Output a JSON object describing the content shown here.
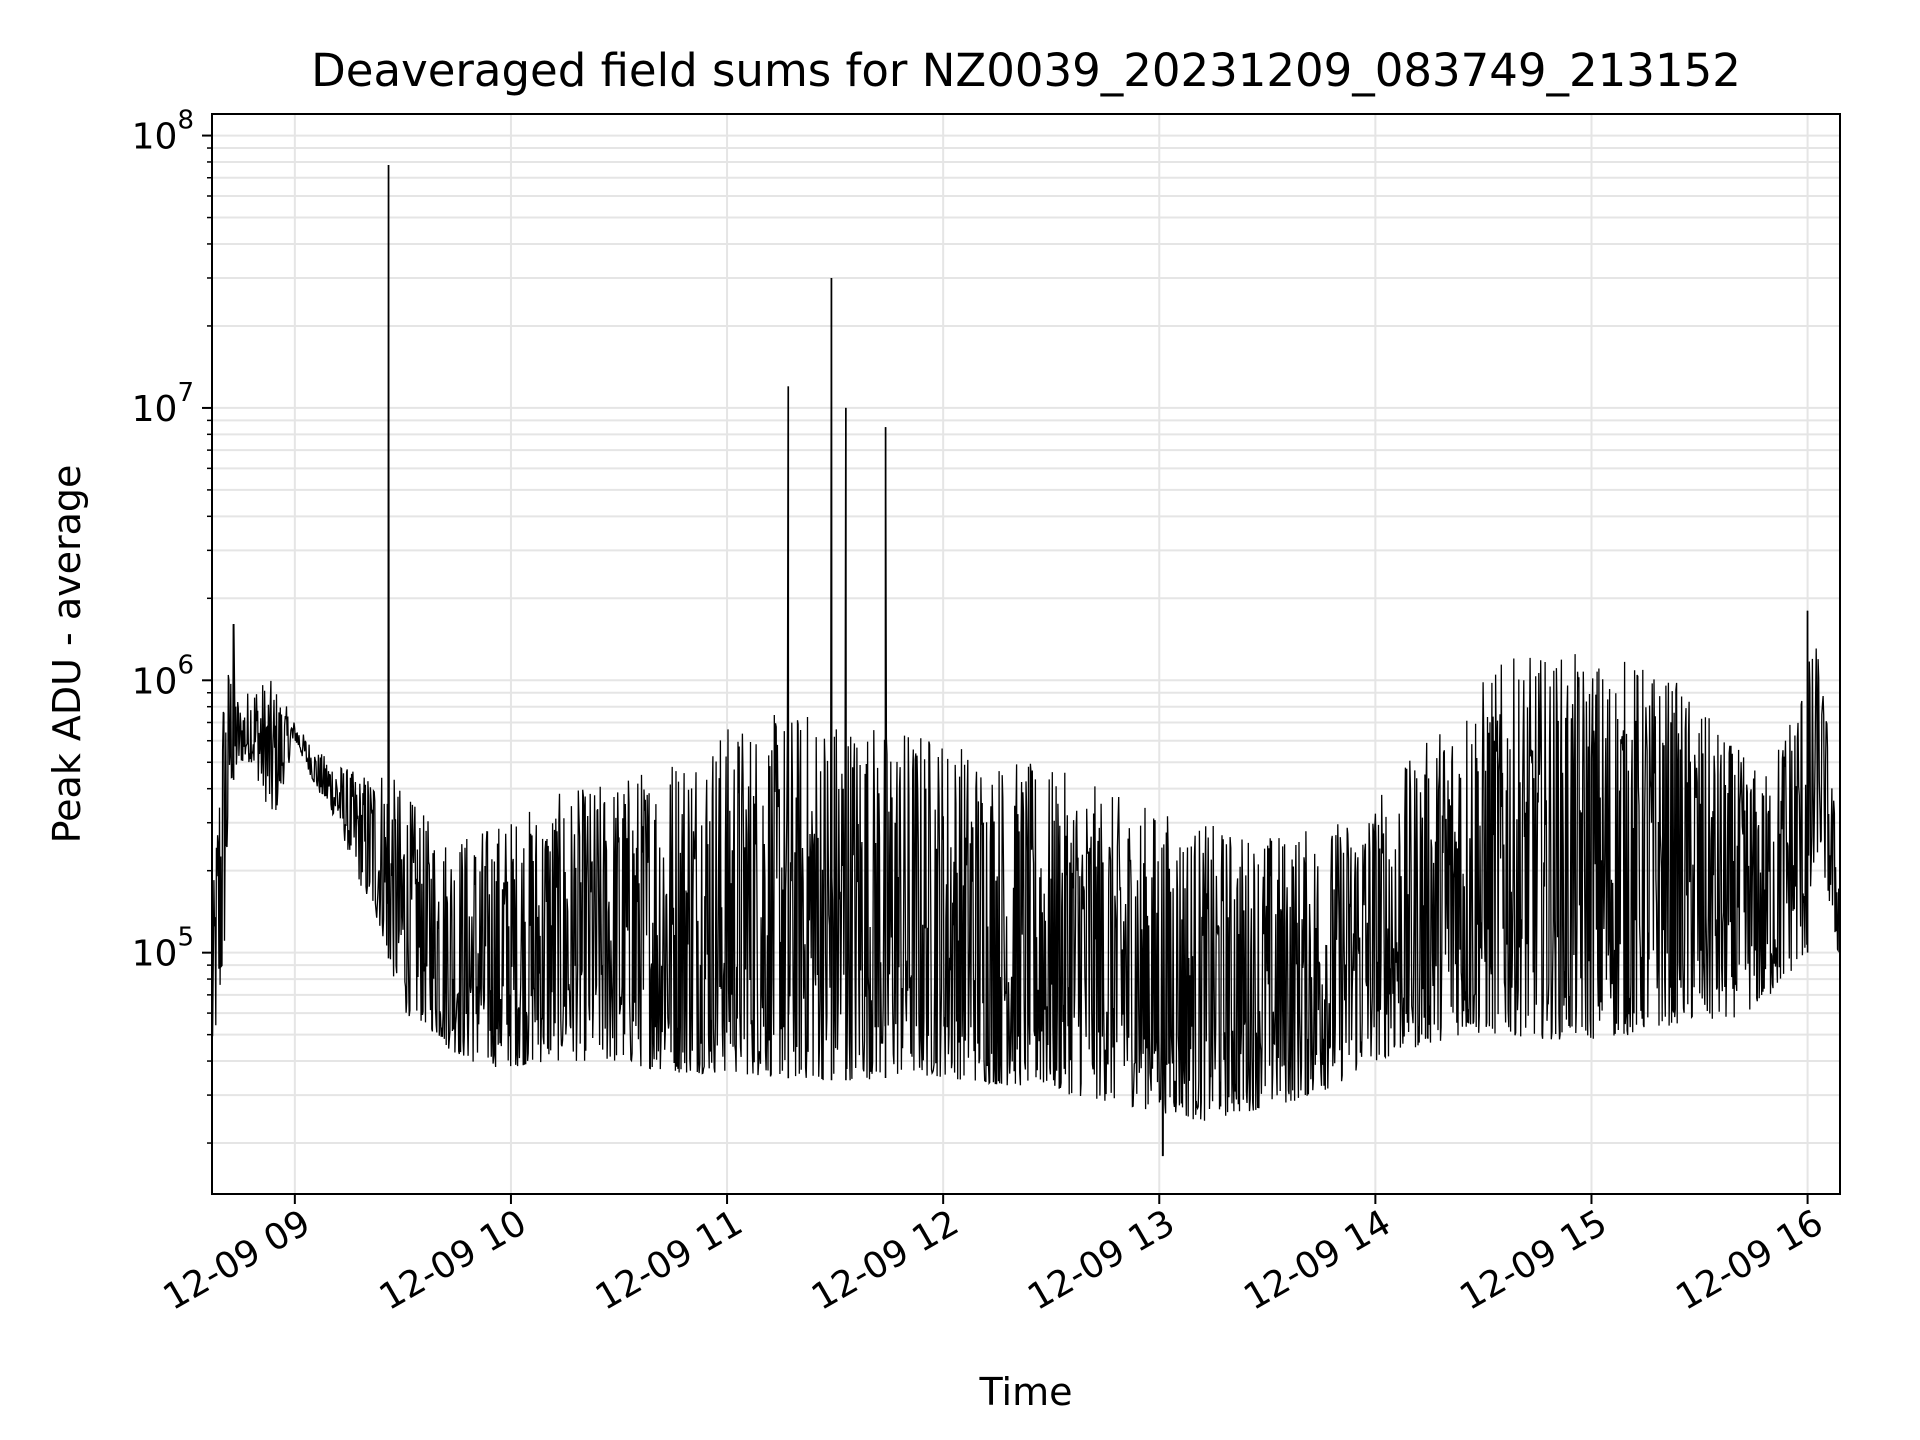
{
  "chart_data": {
    "type": "line",
    "title": "Deaveraged field sums for NZ0039_20231209_083749_213152",
    "xlabel": "Time",
    "ylabel": "Peak ADU - average",
    "yscale": "log",
    "ylim": [
      13000,
      120000000
    ],
    "xlim": [
      "2023-12-09 08:37",
      "2023-12-09 16:09"
    ],
    "x_ticks": [
      "12-09 09",
      "12-09 10",
      "12-09 11",
      "12-09 12",
      "12-09 13",
      "12-09 14",
      "12-09 15",
      "12-09 16"
    ],
    "y_ticks": [
      {
        "base": "10",
        "exp": "5",
        "value": 100000
      },
      {
        "base": "10",
        "exp": "6",
        "value": 1000000
      },
      {
        "base": "10",
        "exp": "7",
        "value": 10000000
      },
      {
        "base": "10",
        "exp": "8",
        "value": 100000000
      }
    ],
    "grid": true,
    "line_color": "#000000",
    "grid_color": "#e5e5e5",
    "series": [
      {
        "envelope": {
          "hours": [
            8.62,
            8.67,
            8.7,
            8.75,
            8.8,
            8.9,
            9.0,
            9.1,
            9.2,
            9.3,
            9.4,
            9.5,
            9.6,
            9.7,
            9.8,
            9.9,
            10.0,
            10.2,
            10.4,
            10.6,
            10.8,
            11.0,
            11.2,
            11.4,
            11.6,
            11.8,
            12.0,
            12.2,
            12.4,
            12.6,
            12.8,
            13.0,
            13.2,
            13.4,
            13.6,
            13.8,
            14.0,
            14.2,
            14.4,
            14.6,
            14.8,
            15.0,
            15.2,
            15.4,
            15.6,
            15.8,
            16.0,
            16.05,
            16.1,
            16.15
          ],
          "low": [
            40000,
            80000,
            400000,
            500000,
            500000,
            300000,
            600000,
            400000,
            300000,
            180000,
            120000,
            60000,
            55000,
            45000,
            40000,
            38000,
            38000,
            40000,
            40000,
            38000,
            36000,
            36000,
            35000,
            34000,
            34000,
            35000,
            35000,
            33000,
            32000,
            30000,
            28000,
            26000,
            24000,
            26000,
            28000,
            32000,
            40000,
            45000,
            50000,
            50000,
            48000,
            48000,
            50000,
            55000,
            55000,
            65000,
            100000,
            250000,
            150000,
            90000
          ],
          "high": [
            150000,
            1100000,
            1200000,
            800000,
            1000000,
            1000000,
            700000,
            550000,
            500000,
            450000,
            500000,
            400000,
            320000,
            280000,
            280000,
            300000,
            320000,
            380000,
            420000,
            480000,
            600000,
            700000,
            750000,
            800000,
            750000,
            700000,
            650000,
            550000,
            500000,
            450000,
            380000,
            340000,
            300000,
            280000,
            280000,
            300000,
            380000,
            550000,
            900000,
            1200000,
            1250000,
            1250000,
            1200000,
            1000000,
            650000,
            450000,
            1200000,
            1400000,
            600000,
            200000
          ]
        },
        "spikes": [
          {
            "x": "2023-12-09 09:26",
            "y": 78000000
          },
          {
            "x": "2023-12-09 11:17",
            "y": 12000000
          },
          {
            "x": "2023-12-09 11:29",
            "y": 30000000
          },
          {
            "x": "2023-12-09 11:33",
            "y": 10000000
          },
          {
            "x": "2023-12-09 11:44",
            "y": 8500000
          },
          {
            "x": "2023-12-09 16:00",
            "y": 1800000
          },
          {
            "x": "2023-12-09 08:43",
            "y": 1600000
          },
          {
            "x": "2023-12-09 13:01",
            "y": 18000
          }
        ]
      }
    ]
  }
}
